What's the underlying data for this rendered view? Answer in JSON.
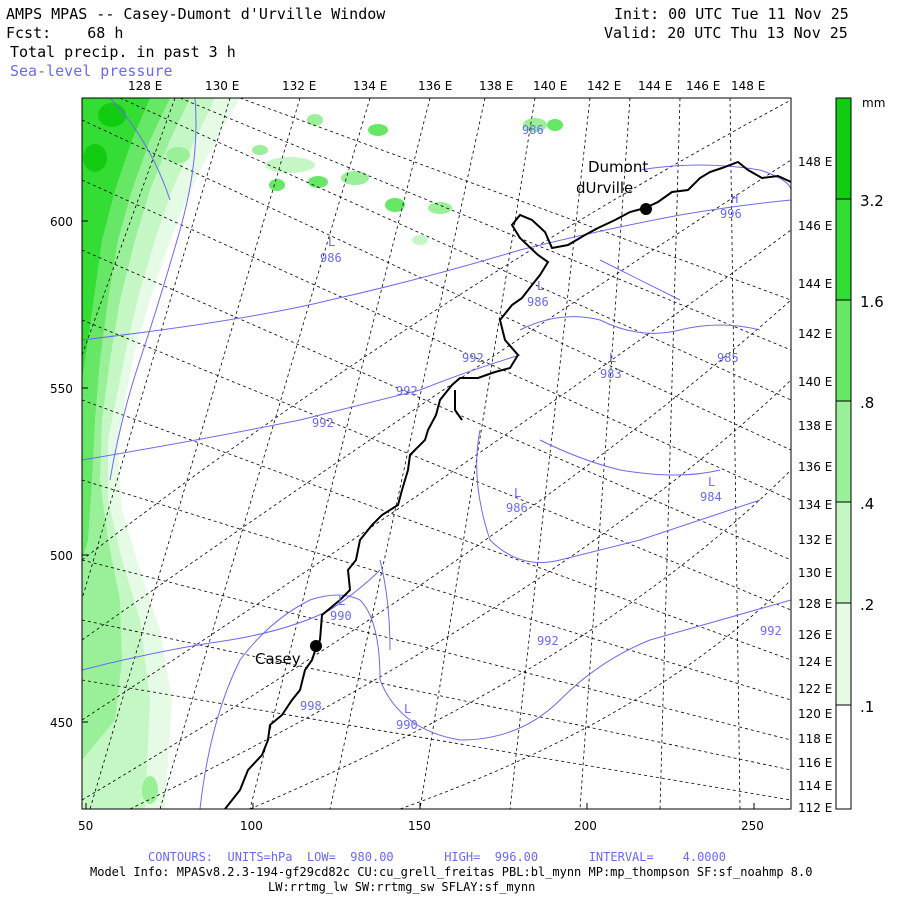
{
  "header": {
    "title": "AMPS MPAS -- Casey-Dumont d'Urville Window",
    "forecast": "Fcst:    68 h",
    "init": "Init: 00 UTC Tue 11 Nov 25",
    "valid": "Valid: 20 UTC Thu 13 Nov 25",
    "field": "Total precip. in past 3 h",
    "contour_field": "Sea-level pressure"
  },
  "colorbar": {
    "unit": "mm",
    "labels": [
      "3.2",
      "1.6",
      ".8",
      ".4",
      ".2",
      ".1"
    ],
    "colors": [
      "#11cc11",
      "#33dd33",
      "#66e866",
      "#99f099",
      "#c4f7c4",
      "#e6fbe6"
    ]
  },
  "axes": {
    "top_lon_labels": [
      "128 E",
      "130 E",
      "132 E",
      "134 E",
      "136 E",
      "138 E",
      "140 E",
      "142 E",
      "144 E",
      "146 E",
      "148 E"
    ],
    "right_lon_labels": [
      "148 E",
      "146 E",
      "144 E",
      "142 E",
      "140 E",
      "138 E",
      "136 E",
      "134 E",
      "132 E",
      "130 E",
      "128 E",
      "126 E",
      "124 E",
      "122 E",
      "120 E",
      "118 E",
      "116 E",
      "114 E",
      "112 E"
    ],
    "y_ticks": [
      "600",
      "550",
      "500",
      "450"
    ],
    "x_ticks": [
      "50",
      "100",
      "150",
      "200",
      "250"
    ]
  },
  "places": [
    {
      "name": "Dumont"
    },
    {
      "name": "dUrville"
    },
    {
      "name": "Casey"
    }
  ],
  "pressure_labels": [
    "986",
    "986",
    "992",
    "983",
    "985",
    "992",
    "992",
    "986",
    "984",
    "990",
    "992",
    "992",
    "998",
    "990",
    "996",
    "986"
  ],
  "footer": {
    "contours": "CONTOURS:  UNITS=hPa  LOW=  980.00       HIGH=  996.00       INTERVAL=    4.0000",
    "model_info": "Model Info: MPASv8.2.3-194-gf29cd82c CU:cu_grell_freitas PBL:bl_mynn MP:mp_thompson SF:sf_noahmp 8.0",
    "physics": "LW:rrtmg_lw SW:rrtmg_sw SFLAY:sf_mynn"
  }
}
